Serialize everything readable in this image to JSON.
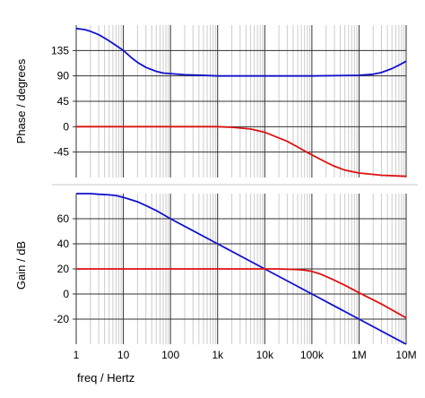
{
  "chart_data": [
    {
      "type": "line",
      "panel": "top",
      "title": "",
      "ylabel": "Phase / degrees",
      "xscale": "log",
      "xlim": [
        1,
        10000000
      ],
      "ylim": [
        -90,
        180
      ],
      "ytick_values": [
        135,
        90,
        45,
        0,
        -45
      ],
      "ytick_labels": [
        "135",
        "90",
        "45",
        "0",
        "-45"
      ],
      "grid": true,
      "series": [
        {
          "color": "#1111cc",
          "x": [
            1,
            1.5,
            2,
            3,
            4,
            5,
            7,
            10,
            15,
            20,
            30,
            50,
            70,
            100,
            200,
            500,
            1000,
            10000,
            100000,
            1000000,
            2000000,
            3000000,
            5000000,
            7000000,
            10000000
          ],
          "values": [
            174,
            172,
            169,
            163,
            157,
            152,
            144,
            135,
            122,
            114,
            105,
            98,
            95,
            94,
            92,
            91,
            90,
            90,
            90,
            91,
            93,
            96,
            103,
            109,
            116
          ]
        },
        {
          "color": "#dd1111",
          "x": [
            1,
            10,
            100,
            1000,
            2000,
            5000,
            10000,
            20000,
            30000,
            50000,
            70000,
            100000,
            200000,
            300000,
            500000,
            1000000,
            3000000,
            10000000
          ],
          "values": [
            0,
            0,
            0,
            0,
            -1,
            -4,
            -10,
            -20,
            -26,
            -36,
            -43,
            -50,
            -63,
            -70,
            -77,
            -82,
            -86,
            -88
          ]
        }
      ]
    },
    {
      "type": "line",
      "panel": "bottom",
      "title": "",
      "ylabel": "Gain / dB",
      "xlabel": "freq / Hertz",
      "xscale": "log",
      "xlim": [
        1,
        10000000
      ],
      "ylim": [
        -40,
        80
      ],
      "ytick_values": [
        60,
        40,
        20,
        0,
        -20
      ],
      "ytick_labels": [
        "60",
        "40",
        "20",
        "0",
        "-20"
      ],
      "xtick_values": [
        1,
        10,
        100,
        1000,
        10000,
        100000,
        1000000,
        10000000
      ],
      "xtick_labels": [
        "1",
        "10",
        "100",
        "1k",
        "10k",
        "100k",
        "1M",
        "10M"
      ],
      "grid": true,
      "series": [
        {
          "color": "#1111cc",
          "x": [
            1,
            2,
            3,
            5,
            7,
            10,
            15,
            20,
            30,
            50,
            100,
            1000,
            10000,
            100000,
            1000000,
            10000000
          ],
          "values": [
            80,
            80,
            79.5,
            79,
            78.5,
            77,
            75,
            73.5,
            70.5,
            66.5,
            60,
            40,
            20,
            0,
            -20,
            -40
          ]
        },
        {
          "color": "#dd1111",
          "x": [
            1,
            10,
            100,
            1000,
            10000,
            20000,
            50000,
            70000,
            100000,
            150000,
            200000,
            300000,
            500000,
            1000000,
            3000000,
            10000000
          ],
          "values": [
            20,
            20,
            20,
            20,
            20,
            20,
            19.5,
            19,
            18,
            16,
            14,
            11,
            7,
            1,
            -8,
            -19
          ]
        }
      ]
    }
  ]
}
